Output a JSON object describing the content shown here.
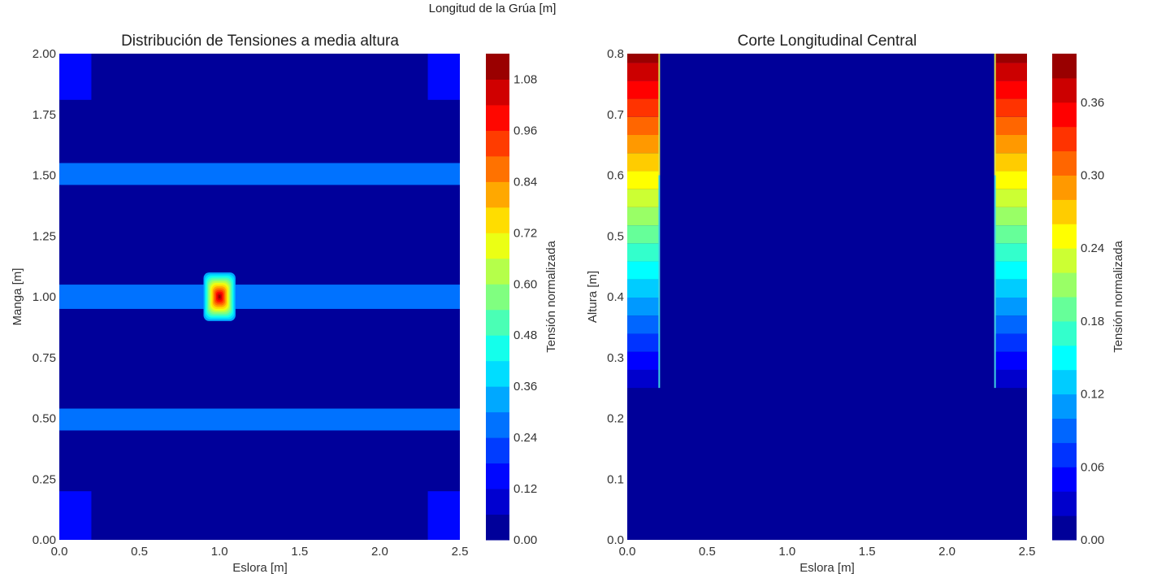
{
  "figure": {
    "suptitle": "Longitud de la Grúa [m]"
  },
  "chart_data": [
    {
      "type": "heatmap",
      "title": "Distribución de Tensiones a media altura",
      "xlabel": "Eslora [m]",
      "ylabel": "Manga [m]",
      "xlim": [
        0,
        2.5
      ],
      "ylim": [
        0,
        2.0
      ],
      "xticks": [
        "0.0",
        "0.5",
        "1.0",
        "1.5",
        "2.0",
        "2.5"
      ],
      "yticks": [
        "0.00",
        "0.25",
        "0.50",
        "0.75",
        "1.00",
        "1.25",
        "1.50",
        "1.75",
        "2.00"
      ],
      "background_value": 0.01,
      "regions": [
        {
          "x": [
            0,
            2.5
          ],
          "y": [
            1.46,
            1.55
          ],
          "value": 0.29
        },
        {
          "x": [
            0,
            2.5
          ],
          "y": [
            0.95,
            1.05
          ],
          "value": 0.29
        },
        {
          "x": [
            0,
            2.5
          ],
          "y": [
            0.45,
            0.54
          ],
          "value": 0.29
        },
        {
          "x": [
            0,
            0.2
          ],
          "y": [
            0,
            0.2
          ],
          "value": 0.15
        },
        {
          "x": [
            2.3,
            2.5
          ],
          "y": [
            0,
            0.2
          ],
          "value": 0.15
        },
        {
          "x": [
            0,
            0.2
          ],
          "y": [
            1.81,
            2.0
          ],
          "value": 0.15
        },
        {
          "x": [
            2.3,
            2.5
          ],
          "y": [
            1.81,
            2.0
          ],
          "value": 0.15
        }
      ],
      "peak": {
        "x": 1.0,
        "y": 1.0,
        "value": 1.12,
        "extent_x": 0.1,
        "extent_y": 0.1
      },
      "colorbar": {
        "label": "Tensión normalizada",
        "min": 0.0,
        "max": 1.14,
        "levels": 19,
        "ticks": [
          "0.00",
          "0.12",
          "0.24",
          "0.36",
          "0.48",
          "0.60",
          "0.72",
          "0.84",
          "0.96",
          "1.08"
        ]
      }
    },
    {
      "type": "heatmap",
      "title": "Corte Longitudinal Central",
      "xlabel": "Eslora [m]",
      "ylabel": "Altura [m]",
      "xlim": [
        0,
        2.5
      ],
      "ylim": [
        0,
        0.8
      ],
      "xticks": [
        "0.0",
        "0.5",
        "1.0",
        "1.5",
        "2.0",
        "2.5"
      ],
      "yticks": [
        "0.0",
        "0.1",
        "0.2",
        "0.3",
        "0.4",
        "0.5",
        "0.6",
        "0.7",
        "0.8"
      ],
      "background_value": 0.005,
      "edge_regions": [
        {
          "x": [
            0,
            0.2
          ],
          "y_start": 0.25,
          "value_bottom": 0.02,
          "value_top": 0.39
        },
        {
          "x": [
            2.3,
            2.5
          ],
          "y_start": 0.25,
          "value_bottom": 0.02,
          "value_top": 0.39
        }
      ],
      "colorbar": {
        "label": "Tensión normalizada",
        "min": 0.0,
        "max": 0.4,
        "levels": 20,
        "ticks": [
          "0.00",
          "0.06",
          "0.12",
          "0.18",
          "0.24",
          "0.30",
          "0.36"
        ]
      }
    }
  ]
}
